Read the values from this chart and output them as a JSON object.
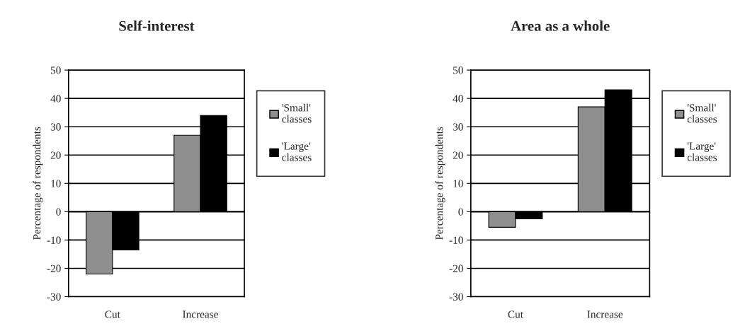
{
  "chart_data": [
    {
      "type": "bar",
      "title": "Self-interest",
      "ylabel": "Percentage of respondents",
      "categories": [
        "Cut",
        "Increase"
      ],
      "series": [
        {
          "name": "'Small'\nclasses",
          "color": "#8f8f8f",
          "values": [
            -22,
            27
          ]
        },
        {
          "name": "'Large'\nclasses",
          "color": "#000000",
          "values": [
            -13.5,
            34
          ]
        }
      ],
      "ylim": [
        -30,
        50
      ],
      "yticks": [
        -30,
        -20,
        -10,
        0,
        10,
        20,
        30,
        40,
        50
      ],
      "grid": "y",
      "legend": "right"
    },
    {
      "type": "bar",
      "title": "Area as a whole",
      "ylabel": "Percentage of respondents",
      "categories": [
        "Cut",
        "Increase"
      ],
      "series": [
        {
          "name": "'Small'\nclasses",
          "color": "#8f8f8f",
          "values": [
            -5.5,
            37
          ]
        },
        {
          "name": "'Large'\nclasses",
          "color": "#000000",
          "values": [
            -2.5,
            43
          ]
        }
      ],
      "ylim": [
        -30,
        50
      ],
      "yticks": [
        -30,
        -20,
        -10,
        0,
        10,
        20,
        30,
        40,
        50
      ],
      "grid": "y",
      "legend": "right"
    }
  ]
}
